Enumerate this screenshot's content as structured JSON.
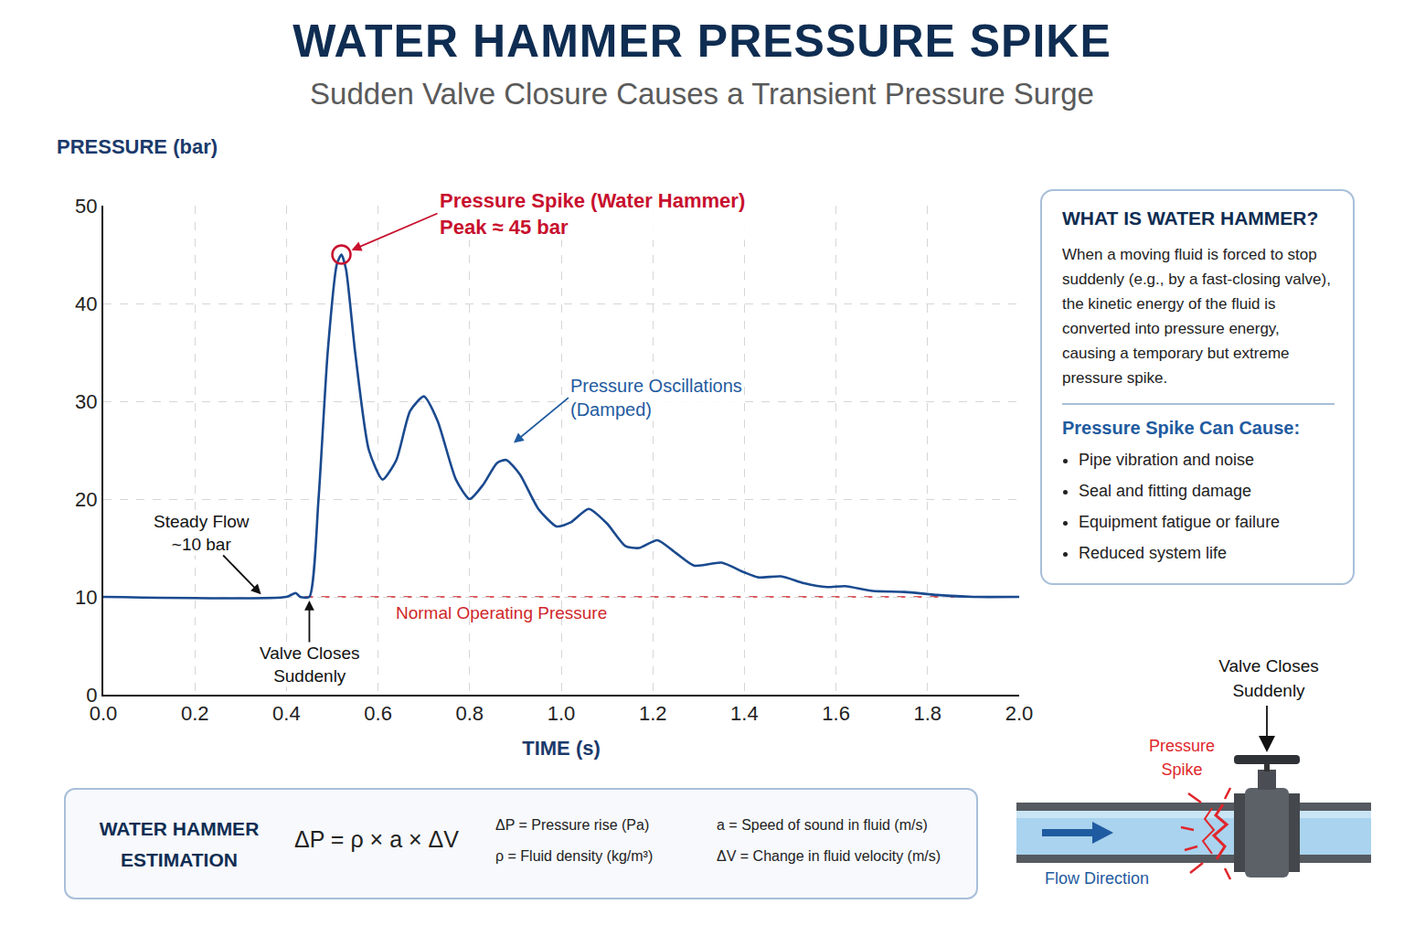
{
  "title": "WATER HAMMER PRESSURE SPIKE",
  "subtitle": "Sudden Valve Closure Causes a Transient Pressure Surge",
  "chart_data": {
    "type": "line",
    "x_label": "TIME (s)",
    "y_label": "PRESSURE (bar)",
    "x": [
      0,
      0.4,
      0.42,
      0.43,
      0.45,
      0.47,
      0.49,
      0.51,
      0.52,
      0.53,
      0.55,
      0.58,
      0.61,
      0.64,
      0.67,
      0.7,
      0.73,
      0.77,
      0.8,
      0.83,
      0.86,
      0.88,
      0.91,
      0.95,
      0.99,
      1.02,
      1.06,
      1.1,
      1.14,
      1.17,
      1.21,
      1.25,
      1.29,
      1.35,
      1.4,
      1.43,
      1.48,
      1.53,
      1.58,
      1.62,
      1.68,
      1.75,
      1.82,
      1.9,
      2.0
    ],
    "values": [
      10,
      10,
      10.4,
      10,
      10,
      20,
      35,
      44,
      45,
      43.5,
      35,
      25,
      22,
      24,
      29,
      30.5,
      28,
      22,
      20,
      21.5,
      23.7,
      24,
      22.5,
      19,
      17.2,
      17.6,
      19,
      17.5,
      15.2,
      15,
      15.8,
      14.5,
      13.2,
      13.5,
      12.5,
      12,
      12.1,
      11.4,
      11,
      11.1,
      10.6,
      10.5,
      10.2,
      10,
      10
    ],
    "color": "#1a4a8f",
    "xlim": [
      0,
      2
    ],
    "ylim": [
      0,
      50
    ],
    "xticks": [
      {
        "value": 0,
        "label": "0.0"
      },
      0.2,
      0.4,
      0.6,
      0.8,
      {
        "value": 1,
        "label": "1.0"
      },
      1.2,
      1.4,
      1.6,
      1.8,
      {
        "value": 2,
        "label": "2.0"
      }
    ],
    "yticks": [
      0,
      10,
      20,
      30,
      40,
      50
    ],
    "grid": true,
    "reference_line": {
      "value": 10,
      "x_start": 0.44,
      "label": "Normal Operating Pressure",
      "color": "#d0262b",
      "line_style": "dashed"
    },
    "annotations": [
      {
        "lines": [
          "Pressure Spike (Water Hammer)",
          "Peak ≈ 45 bar"
        ],
        "x": 0.52,
        "y": 45,
        "color": "#c8102e",
        "marker": "circle"
      },
      {
        "lines": [
          "Pressure Oscillations",
          "(Damped)"
        ],
        "x": 0.89,
        "y": 25.5,
        "color": "#1f5ba0"
      },
      {
        "lines": [
          "Steady Flow",
          "~10 bar"
        ],
        "x": 0.35,
        "y": 10,
        "color": "#111111"
      },
      {
        "lines": [
          "Valve Closes",
          "Suddenly"
        ],
        "x": 0.45,
        "y": 10,
        "color": "#111111"
      }
    ]
  },
  "info_box": {
    "title": "WHAT IS WATER HAMMER?",
    "text": "When a moving fluid is forced to stop suddenly (e.g., by a fast-closing valve), the kinetic energy of the fluid is converted into pressure energy, causing a temporary but extreme pressure spike.",
    "subtitle": "Pressure Spike Can Cause:",
    "items": [
      "Pipe vibration and noise",
      "Seal and fitting damage",
      "Equipment fatigue or failure",
      "Reduced system life"
    ]
  },
  "formula_box": {
    "title": [
      "WATER HAMMER",
      "ESTIMATION"
    ],
    "formula": "ΔP = ρ × a × ΔV",
    "definitions": [
      "ΔP = Pressure rise (Pa)",
      "ρ  = Fluid density (kg/m³)",
      "a = Speed of sound in fluid (m/s)",
      "ΔV = Change in fluid velocity (m/s)"
    ]
  },
  "diagram": {
    "valve_label": [
      "Valve Closes",
      "Suddenly"
    ],
    "spike_label": [
      "Pressure",
      "Spike"
    ],
    "flow_label": "Flow Direction"
  }
}
